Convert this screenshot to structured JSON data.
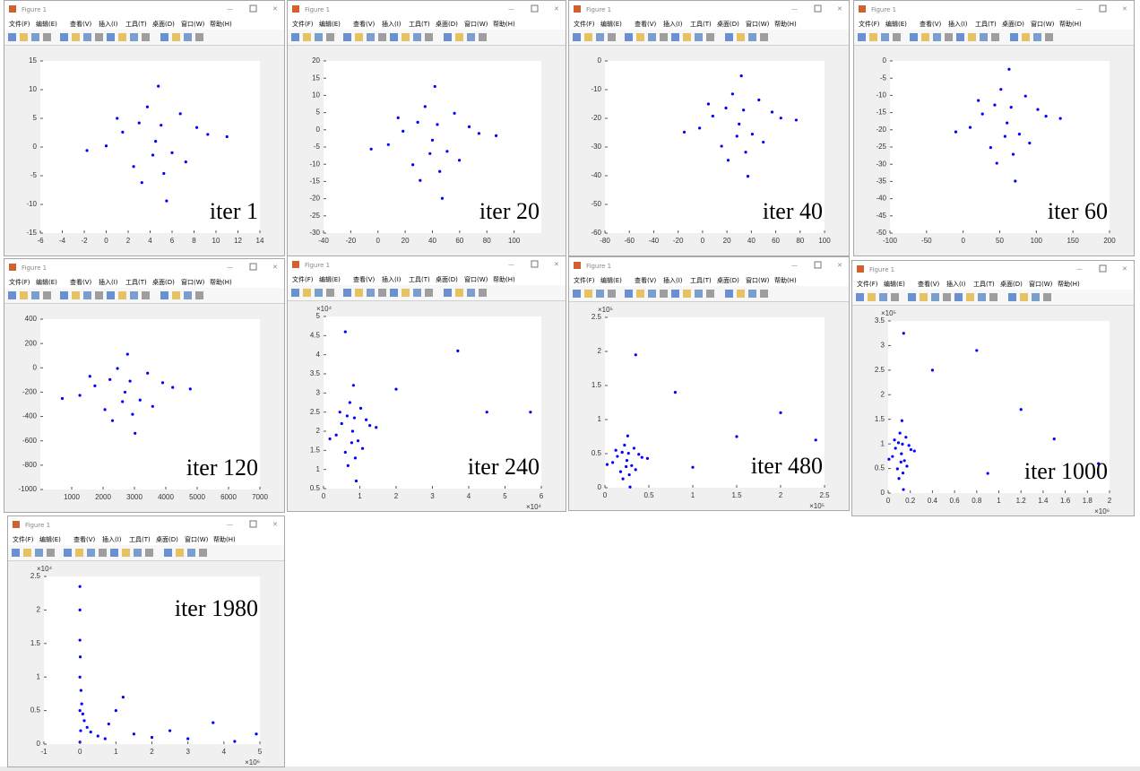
{
  "window_title": "Figure 1",
  "menu": [
    "文件(F)",
    "编辑(E)",
    "查看(V)",
    "插入(I)",
    "工具(T)",
    "桌面(D)",
    "窗口(W)",
    "帮助(H)"
  ],
  "chart_data": [
    {
      "type": "scatter",
      "annotation": "iter 1",
      "color": "#0000ff",
      "x": [
        4.5,
        3,
        6,
        1.5,
        7.25,
        3.75,
        5.25,
        0,
        9.25,
        2.5,
        6.75,
        4.75,
        1,
        8.25,
        -1.75,
        11,
        5.5,
        3.25,
        5,
        4.25
      ],
      "values": [
        1,
        4.2,
        -1,
        2.6,
        -2.6,
        7,
        -4.6,
        0.2,
        2.2,
        -3.4,
        5.8,
        10.6,
        5,
        3.4,
        -0.6,
        1.8,
        -9.4,
        -6.2,
        3.8,
        -1.4
      ],
      "xlim": [
        -6,
        14
      ],
      "xticks": [
        -6,
        -4,
        -2,
        0,
        2,
        4,
        6,
        8,
        10,
        12,
        14
      ],
      "ylim": [
        -15,
        15
      ],
      "yticks": [
        -15,
        -10,
        -5,
        0,
        5,
        10,
        15
      ]
    },
    {
      "type": "scatter",
      "annotation": "iter 20",
      "color": "#0000ff",
      "x": [
        40,
        29.2,
        50.8,
        18.4,
        59.8,
        34.6,
        45.4,
        7.6,
        74.2,
        25.6,
        56.2,
        41.8,
        14.8,
        67,
        -5,
        86.8,
        47.2,
        31,
        43.6,
        38.2
      ],
      "values": [
        -3,
        2.2,
        -6.25,
        -0.4,
        -8.85,
        6.75,
        -12.1,
        -4.3,
        -1.05,
        -10.15,
        4.8,
        12.6,
        3.5,
        0.9,
        -5.6,
        -1.7,
        -19.9,
        -14.7,
        1.55,
        -6.9
      ],
      "xlim": [
        -40,
        120
      ],
      "xticks": [
        -40,
        -20,
        0,
        20,
        40,
        60,
        80,
        100
      ],
      "ylim": [
        -30,
        20
      ],
      "yticks": [
        -30,
        -25,
        -20,
        -15,
        -10,
        -5,
        0,
        5,
        10,
        15,
        20
      ]
    },
    {
      "type": "scatter",
      "annotation": "iter 40",
      "color": "#0000ff",
      "x": [
        30,
        19.2,
        40.8,
        8.4,
        49.8,
        24.6,
        35.4,
        -2.4,
        64.2,
        15.6,
        46.2,
        31.8,
        4.8,
        57,
        -15,
        76.8,
        37.2,
        21,
        33.6,
        28.2
      ],
      "values": [
        -22,
        -16.4,
        -25.5,
        -19.2,
        -28.3,
        -11.5,
        -31.8,
        -23.4,
        -19.9,
        -29.7,
        -13.6,
        -5.2,
        -15,
        -17.8,
        -24.8,
        -20.6,
        -40.2,
        -34.6,
        -17.1,
        -26.2
      ],
      "xlim": [
        -80,
        100
      ],
      "xticks": [
        -80,
        -60,
        -40,
        -20,
        0,
        20,
        40,
        60,
        80,
        100
      ],
      "ylim": [
        -60,
        0
      ],
      "yticks": [
        -60,
        -50,
        -40,
        -30,
        -20,
        -10,
        0
      ]
    },
    {
      "type": "scatter",
      "annotation": "iter 60",
      "color": "#0000ff",
      "x": [
        60,
        43.2,
        76.8,
        26.4,
        90.8,
        51.6,
        68.4,
        9.6,
        113.2,
        37.6,
        85.2,
        62.8,
        20.8,
        102,
        -10,
        132.8,
        71.2,
        46,
        65.6,
        57.2
      ],
      "values": [
        -18,
        -12.8,
        -21.25,
        -15.4,
        -23.85,
        -8.25,
        -27.1,
        -19.3,
        -16.05,
        -25.15,
        -10.2,
        -2.4,
        -11.5,
        -14.1,
        -20.6,
        -16.7,
        -34.9,
        -29.7,
        -13.45,
        -21.9
      ],
      "xlim": [
        -100,
        200
      ],
      "xticks": [
        -100,
        -50,
        0,
        50,
        100,
        150,
        200
      ],
      "ylim": [
        -50,
        0
      ],
      "yticks": [
        -50,
        -45,
        -40,
        -35,
        -30,
        -25,
        -20,
        -15,
        -10,
        -5,
        0
      ]
    },
    {
      "type": "scatter",
      "annotation": "iter 120",
      "color": "#0000ff",
      "x": [
        2700,
        2220,
        3180,
        1740,
        3580,
        2460,
        2940,
        1260,
        4220,
        2060,
        3420,
        2780,
        1580,
        3900,
        700,
        4780,
        3020,
        2300,
        2860,
        2620
      ],
      "values": [
        -200,
        -96,
        -265,
        -148,
        -317,
        -5,
        -382,
        -226,
        -161,
        -343,
        -44,
        112,
        -70,
        -122,
        -252,
        -174,
        -538,
        -434,
        -109,
        -278
      ],
      "xlim": [
        0,
        7000
      ],
      "xticks": [
        1000,
        2000,
        3000,
        4000,
        5000,
        6000,
        7000
      ],
      "ylim": [
        -1000,
        400
      ],
      "yticks": [
        -1000,
        -800,
        -600,
        -400,
        -200,
        0,
        200,
        400
      ]
    },
    {
      "type": "scatter",
      "annotation": "iter 240",
      "color": "#0000ff",
      "x": [
        8000,
        6500,
        9500,
        5000,
        10750,
        7250,
        8750,
        3500,
        12750,
        6000,
        10250,
        8250,
        4500,
        11750,
        1750,
        14500,
        9000,
        6750,
        8500,
        7750,
        37000,
        45000,
        57000,
        20000,
        6000
      ],
      "values": [
        20000,
        24000,
        17500,
        22000,
        15500,
        27500,
        13000,
        19000,
        21500,
        14500,
        26000,
        32000,
        25000,
        23000,
        18000,
        21000,
        7000,
        11000,
        23500,
        17000,
        41000,
        25000,
        25000,
        31000,
        46000
      ],
      "xlim": [
        0,
        60000
      ],
      "x_exponent": "×10⁴",
      "xticks": [
        0,
        {
          "value": 10000,
          "label": "1"
        },
        {
          "value": 20000,
          "label": "2"
        },
        {
          "value": 30000,
          "label": "3"
        },
        {
          "value": 40000,
          "label": "4"
        },
        {
          "value": 50000,
          "label": "5"
        },
        {
          "value": 60000,
          "label": "6"
        }
      ],
      "ylim": [
        5000,
        50000
      ],
      "y_exponent": "×10⁴",
      "yticks": [
        {
          "value": 5000,
          "label": "0.5"
        },
        {
          "value": 10000,
          "label": "1"
        },
        {
          "value": 15000,
          "label": "1.5"
        },
        {
          "value": 20000,
          "label": "2"
        },
        {
          "value": 25000,
          "label": "2.5"
        },
        {
          "value": 30000,
          "label": "3"
        },
        {
          "value": 35000,
          "label": "3.5"
        },
        {
          "value": 40000,
          "label": "4"
        },
        {
          "value": 45000,
          "label": "4.5"
        },
        {
          "value": 50000,
          "label": "5"
        }
      ]
    },
    {
      "type": "scatter",
      "annotation": "iter 480",
      "color": "#0000ff",
      "x": [
        25000,
        19600,
        30400,
        14200,
        34900,
        22300,
        27700,
        8800,
        42100,
        17800,
        33100,
        25900,
        12400,
        38500,
        2500,
        48400,
        28600,
        20500,
        26800,
        24100,
        150000,
        240000,
        200000,
        80000,
        35000,
        100000
      ],
      "values": [
        40000,
        52000,
        32500,
        46000,
        26500,
        62500,
        19000,
        37000,
        44500,
        23500,
        58000,
        76000,
        55000,
        49000,
        34000,
        43000,
        1000,
        13000,
        50500,
        31000,
        75000,
        70000,
        110000,
        140000,
        195000,
        30000
      ],
      "xlim": [
        0,
        250000
      ],
      "x_exponent": "×10⁵",
      "xticks": [
        0,
        {
          "value": 50000,
          "label": "0.5"
        },
        {
          "value": 100000,
          "label": "1"
        },
        {
          "value": 150000,
          "label": "1.5"
        },
        {
          "value": 200000,
          "label": "2"
        },
        {
          "value": 250000,
          "label": "2.5"
        }
      ],
      "ylim": [
        0,
        250000
      ],
      "y_exponent": "×10⁵",
      "yticks": [
        0,
        {
          "value": 50000,
          "label": "0.5"
        },
        {
          "value": 100000,
          "label": "1"
        },
        {
          "value": 150000,
          "label": "1.5"
        },
        {
          "value": 200000,
          "label": "2"
        },
        {
          "value": 250000,
          "label": "2.5"
        }
      ]
    },
    {
      "type": "scatter",
      "annotation": "iter 1000",
      "color": "#0000ff",
      "x": [
        120000,
        93000,
        147000,
        66000,
        169500,
        106500,
        133500,
        39000,
        205500,
        84000,
        160500,
        124500,
        57000,
        187500,
        7500,
        237000,
        138000,
        97500,
        129000,
        115500,
        800000,
        1500000,
        1200000,
        400000,
        900000,
        140000,
        1900000
      ],
      "values": [
        80000,
        102400,
        66000,
        91200,
        54800,
        122000,
        40800,
        74400,
        88400,
        49200,
        113600,
        147200,
        108000,
        96800,
        68800,
        85600,
        7200,
        29600,
        99600,
        63200,
        290000,
        110000,
        170000,
        250000,
        40000,
        325000,
        60000
      ],
      "xlim": [
        0,
        2000000
      ],
      "x_exponent": "×10⁶",
      "xticks": [
        0,
        {
          "value": 200000,
          "label": "0.2"
        },
        {
          "value": 400000,
          "label": "0.4"
        },
        {
          "value": 600000,
          "label": "0.6"
        },
        {
          "value": 800000,
          "label": "0.8"
        },
        {
          "value": 1000000,
          "label": "1"
        },
        {
          "value": 1200000,
          "label": "1.2"
        },
        {
          "value": 1400000,
          "label": "1.4"
        },
        {
          "value": 1600000,
          "label": "1.6"
        },
        {
          "value": 1800000,
          "label": "1.8"
        },
        {
          "value": 2000000,
          "label": "2"
        }
      ],
      "ylim": [
        0,
        350000
      ],
      "y_exponent": "×10⁵",
      "yticks": [
        0,
        {
          "value": 50000,
          "label": "0.5"
        },
        {
          "value": 100000,
          "label": "1"
        },
        {
          "value": 150000,
          "label": "1.5"
        },
        {
          "value": 200000,
          "label": "2"
        },
        {
          "value": 250000,
          "label": "2.5"
        },
        {
          "value": 300000,
          "label": "3"
        },
        {
          "value": 350000,
          "label": "3.5"
        }
      ]
    },
    {
      "type": "scatter",
      "annotation": "iter 1980",
      "color": "#0000ff",
      "x": [
        0,
        0,
        0,
        10000,
        0,
        30000,
        50000,
        80000,
        120000,
        200000,
        300000,
        500000,
        700000,
        1000000,
        1200000,
        800000,
        1500000,
        2000000,
        2500000,
        3000000,
        3700000,
        4300000,
        4900000,
        0,
        20000,
        0
      ],
      "values": [
        23500,
        20000,
        15500,
        13000,
        10000,
        8000,
        6000,
        4500,
        3500,
        2500,
        1800,
        1200,
        800,
        5000,
        7000,
        3000,
        1500,
        1000,
        2000,
        800,
        3200,
        400,
        1500,
        5000,
        2000,
        300
      ],
      "xlim": [
        -1000000,
        5000000
      ],
      "x_exponent": "×10⁶",
      "xticks": [
        {
          "value": -1000000,
          "label": "-1"
        },
        0,
        {
          "value": 1000000,
          "label": "1"
        },
        {
          "value": 2000000,
          "label": "2"
        },
        {
          "value": 3000000,
          "label": "3"
        },
        {
          "value": 4000000,
          "label": "4"
        },
        {
          "value": 5000000,
          "label": "5"
        }
      ],
      "ylim": [
        0,
        25000
      ],
      "y_exponent": "×10⁴",
      "yticks": [
        0,
        {
          "value": 5000,
          "label": "0.5"
        },
        {
          "value": 10000,
          "label": "1"
        },
        {
          "value": 15000,
          "label": "1.5"
        },
        {
          "value": 20000,
          "label": "2"
        },
        {
          "value": 25000,
          "label": "2.5"
        }
      ]
    }
  ]
}
